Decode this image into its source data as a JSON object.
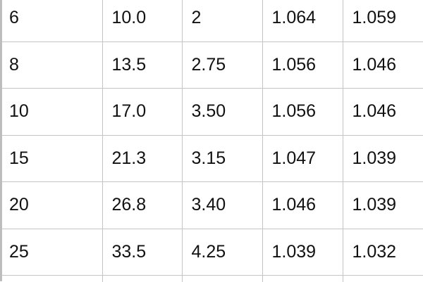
{
  "table": {
    "rows": [
      [
        "6",
        "10.0",
        "2",
        "1.064",
        "1.059"
      ],
      [
        "8",
        "13.5",
        "2.75",
        "1.056",
        "1.046"
      ],
      [
        "10",
        "17.0",
        "3.50",
        "1.056",
        "1.046"
      ],
      [
        "15",
        "21.3",
        "3.15",
        "1.047",
        "1.039"
      ],
      [
        "20",
        "26.8",
        "3.40",
        "1.046",
        "1.039"
      ],
      [
        "25",
        "33.5",
        "4.25",
        "1.039",
        "1.032"
      ]
    ]
  }
}
